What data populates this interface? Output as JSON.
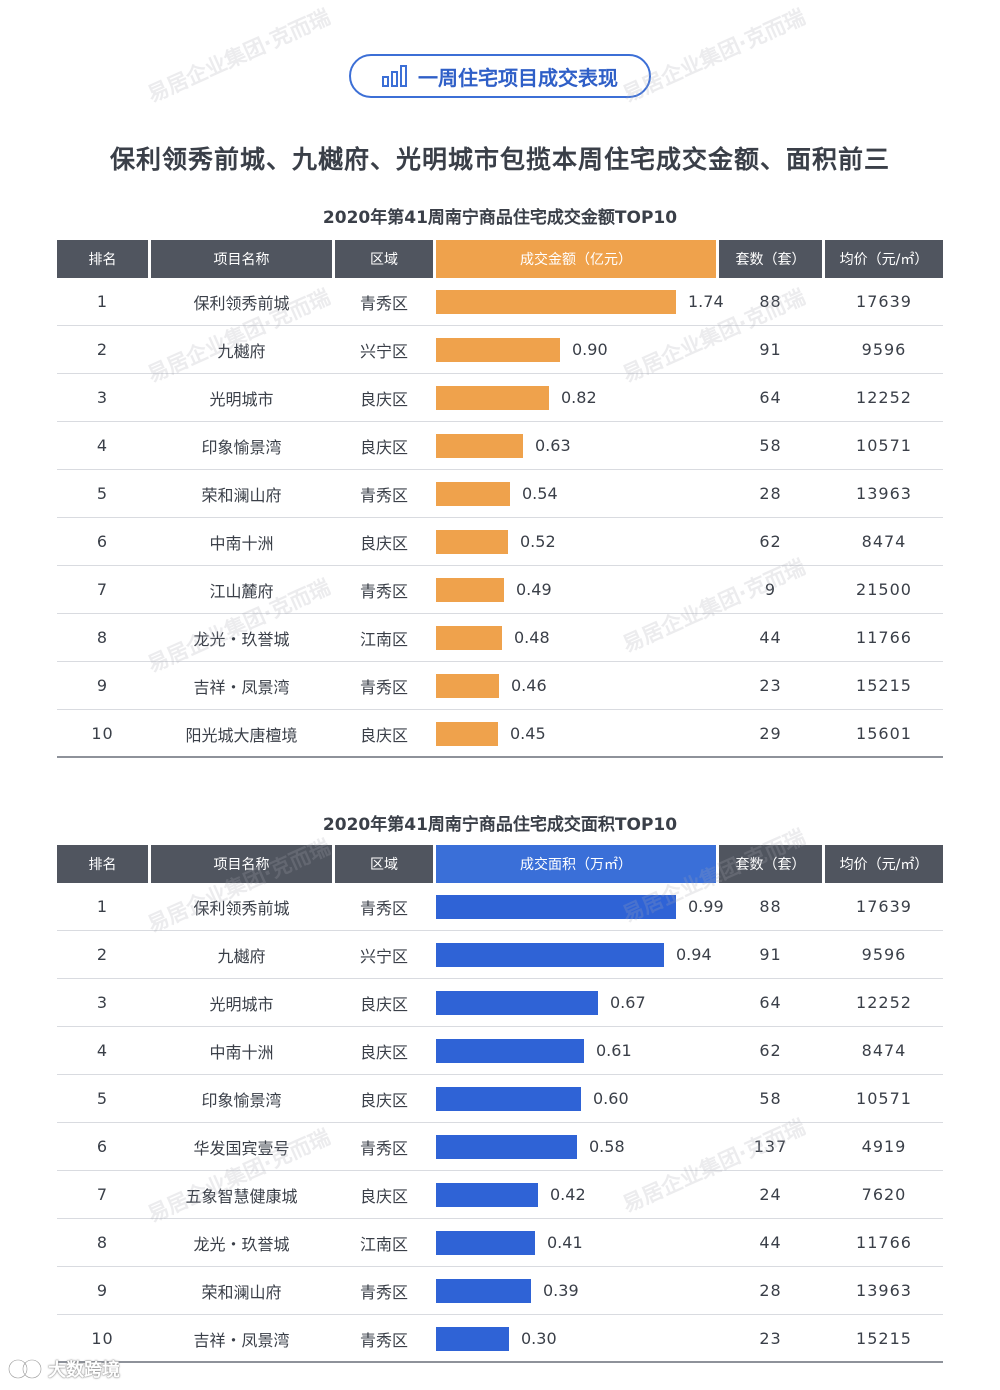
{
  "section_title": "一周住宅项目成交表现",
  "headline": "保利领秀前城、九樾府、光明城市包揽本周住宅成交金额、面积前三",
  "watermark": "易居企业集团·克而瑞",
  "footer_brand": "大数跨境",
  "colors": {
    "amount_bar": "#efa24c",
    "area_bar": "#2f63d6",
    "header": "#50555f"
  },
  "chart_data": [
    {
      "type": "table",
      "title": "2020年第41周南宁商品住宅成交金额TOP10",
      "columns": [
        "排名",
        "项目名称",
        "区域",
        "成交金额（亿元）",
        "套数（套）",
        "均价（元/㎡）"
      ],
      "value_column": "成交金额（亿元）",
      "value_max": 1.74,
      "rows": [
        {
          "rank": "1",
          "name": "保利领秀前城",
          "district": "青秀区",
          "value": 1.74,
          "value_label": "1.74",
          "units": "88",
          "price": "17639"
        },
        {
          "rank": "2",
          "name": "九樾府",
          "district": "兴宁区",
          "value": 0.9,
          "value_label": "0.90",
          "units": "91",
          "price": "9596"
        },
        {
          "rank": "3",
          "name": "光明城市",
          "district": "良庆区",
          "value": 0.82,
          "value_label": "0.82",
          "units": "64",
          "price": "12252"
        },
        {
          "rank": "4",
          "name": "印象愉景湾",
          "district": "良庆区",
          "value": 0.63,
          "value_label": "0.63",
          "units": "58",
          "price": "10571"
        },
        {
          "rank": "5",
          "name": "荣和澜山府",
          "district": "青秀区",
          "value": 0.54,
          "value_label": "0.54",
          "units": "28",
          "price": "13963"
        },
        {
          "rank": "6",
          "name": "中南十洲",
          "district": "良庆区",
          "value": 0.52,
          "value_label": "0.52",
          "units": "62",
          "price": "8474"
        },
        {
          "rank": "7",
          "name": "江山麓府",
          "district": "青秀区",
          "value": 0.49,
          "value_label": "0.49",
          "units": "9",
          "price": "21500"
        },
        {
          "rank": "8",
          "name": "龙光・玖誉城",
          "district": "江南区",
          "value": 0.48,
          "value_label": "0.48",
          "units": "44",
          "price": "11766"
        },
        {
          "rank": "9",
          "name": "吉祥・凤景湾",
          "district": "青秀区",
          "value": 0.46,
          "value_label": "0.46",
          "units": "23",
          "price": "15215"
        },
        {
          "rank": "10",
          "name": "阳光城大唐檀境",
          "district": "良庆区",
          "value": 0.45,
          "value_label": "0.45",
          "units": "29",
          "price": "15601"
        }
      ]
    },
    {
      "type": "table",
      "title": "2020年第41周南宁商品住宅成交面积TOP10",
      "columns": [
        "排名",
        "项目名称",
        "区域",
        "成交面积（万㎡）",
        "套数（套）",
        "均价（元/㎡）"
      ],
      "value_column": "成交面积（万㎡）",
      "value_max": 0.99,
      "rows": [
        {
          "rank": "1",
          "name": "保利领秀前城",
          "district": "青秀区",
          "value": 0.99,
          "value_label": "0.99",
          "units": "88",
          "price": "17639"
        },
        {
          "rank": "2",
          "name": "九樾府",
          "district": "兴宁区",
          "value": 0.94,
          "value_label": "0.94",
          "units": "91",
          "price": "9596"
        },
        {
          "rank": "3",
          "name": "光明城市",
          "district": "良庆区",
          "value": 0.67,
          "value_label": "0.67",
          "units": "64",
          "price": "12252"
        },
        {
          "rank": "4",
          "name": "中南十洲",
          "district": "良庆区",
          "value": 0.61,
          "value_label": "0.61",
          "units": "62",
          "price": "8474"
        },
        {
          "rank": "5",
          "name": "印象愉景湾",
          "district": "良庆区",
          "value": 0.6,
          "value_label": "0.60",
          "units": "58",
          "price": "10571"
        },
        {
          "rank": "6",
          "name": "华发国宾壹号",
          "district": "青秀区",
          "value": 0.58,
          "value_label": "0.58",
          "units": "137",
          "price": "4919"
        },
        {
          "rank": "7",
          "name": "五象智慧健康城",
          "district": "良庆区",
          "value": 0.42,
          "value_label": "0.42",
          "units": "24",
          "price": "7620"
        },
        {
          "rank": "8",
          "name": "龙光・玖誉城",
          "district": "江南区",
          "value": 0.41,
          "value_label": "0.41",
          "units": "44",
          "price": "11766"
        },
        {
          "rank": "9",
          "name": "荣和澜山府",
          "district": "青秀区",
          "value": 0.39,
          "value_label": "0.39",
          "units": "28",
          "price": "13963"
        },
        {
          "rank": "10",
          "name": "吉祥・凤景湾",
          "district": "青秀区",
          "value": 0.3,
          "value_label": "0.30",
          "units": "23",
          "price": "15215"
        }
      ]
    }
  ]
}
